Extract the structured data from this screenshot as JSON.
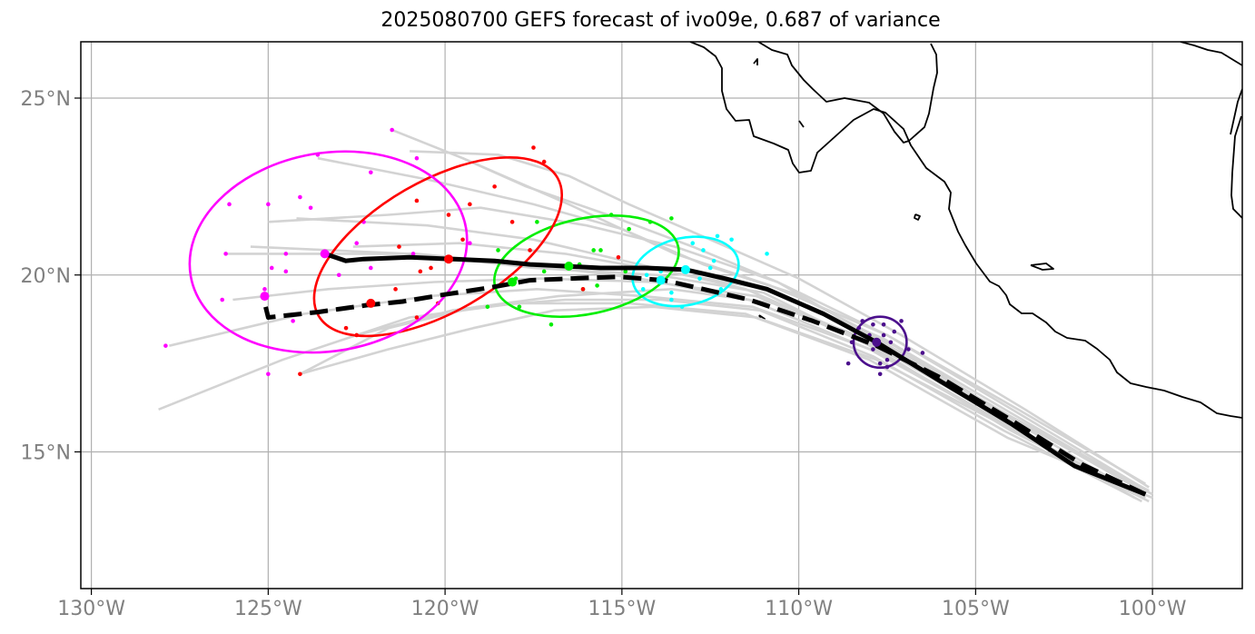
{
  "title": "2025080700 GEFS forecast of ivo09e, 0.687 of variance",
  "axes": {
    "lon_ticks": [
      {
        "lon": -130,
        "label": "130°W"
      },
      {
        "lon": -125,
        "label": "125°W"
      },
      {
        "lon": -120,
        "label": "120°W"
      },
      {
        "lon": -115,
        "label": "115°W"
      },
      {
        "lon": -110,
        "label": "110°W"
      },
      {
        "lon": -105,
        "label": "105°W"
      },
      {
        "lon": -100,
        "label": "100°W"
      }
    ],
    "lat_ticks": [
      {
        "lat": 15,
        "label": "15°N"
      },
      {
        "lat": 20,
        "label": "20°N"
      },
      {
        "lat": 25,
        "label": "25°N"
      }
    ]
  },
  "map_view": {
    "lon_range": [
      -130.3,
      -97.5
    ],
    "lat_range": [
      11.1,
      26.6
    ],
    "grid": true
  },
  "colors": {
    "grid": "#b0b0b0",
    "ensemble_member": "#d3d3d3",
    "coast": "#000000",
    "day_colors": [
      "#4b0f8c",
      "#00ffff",
      "#00ee00",
      "#ff0000",
      "#ff00ff"
    ]
  },
  "chart_data": {
    "type": "map",
    "ensemble_mean_track": {
      "style": "solid",
      "points": [
        [
          -100.2,
          13.8
        ],
        [
          -102.2,
          14.6
        ],
        [
          -104.0,
          15.8
        ],
        [
          -106.0,
          17.0
        ],
        [
          -107.8,
          18.1
        ],
        [
          -109.3,
          18.9
        ],
        [
          -110.9,
          19.6
        ],
        [
          -112.1,
          19.9
        ],
        [
          -113.2,
          20.15
        ],
        [
          -114.3,
          20.2
        ],
        [
          -115.6,
          20.2
        ],
        [
          -116.6,
          20.25
        ],
        [
          -117.6,
          20.3
        ],
        [
          -118.6,
          20.4
        ],
        [
          -119.8,
          20.45
        ],
        [
          -121.0,
          20.5
        ],
        [
          -122.3,
          20.45
        ],
        [
          -122.8,
          20.4
        ],
        [
          -123.4,
          20.6
        ]
      ]
    },
    "control_track": {
      "style": "dashed",
      "points": [
        [
          -100.2,
          13.8
        ],
        [
          -102.0,
          14.65
        ],
        [
          -104.0,
          15.9
        ],
        [
          -106.0,
          17.1
        ],
        [
          -107.8,
          18.0
        ],
        [
          -109.6,
          18.7
        ],
        [
          -111.4,
          19.3
        ],
        [
          -112.7,
          19.6
        ],
        [
          -113.8,
          19.85
        ],
        [
          -115.1,
          19.95
        ],
        [
          -116.4,
          19.9
        ],
        [
          -117.6,
          19.85
        ],
        [
          -118.7,
          19.65
        ],
        [
          -120.0,
          19.45
        ],
        [
          -121.2,
          19.25
        ],
        [
          -122.2,
          19.15
        ],
        [
          -123.6,
          18.95
        ],
        [
          -125.0,
          18.8
        ],
        [
          -125.1,
          19.2
        ]
      ]
    },
    "member_tracks": [
      [
        [
          -100.1,
          13.6
        ],
        [
          -104,
          15.6
        ],
        [
          -107.8,
          17.9
        ],
        [
          -111,
          19.5
        ],
        [
          -114,
          20.0
        ],
        [
          -117.5,
          20.2
        ],
        [
          -121,
          20.6
        ],
        [
          -125.5,
          20.8
        ]
      ],
      [
        [
          -100.3,
          13.9
        ],
        [
          -104,
          16.0
        ],
        [
          -107.8,
          18.2
        ],
        [
          -110.6,
          19.8
        ],
        [
          -113.5,
          20.8
        ],
        [
          -116,
          21.4
        ],
        [
          -119,
          21.9
        ],
        [
          -121.6,
          21.7
        ],
        [
          -125,
          21.5
        ]
      ],
      [
        [
          -100.5,
          13.7
        ],
        [
          -104.2,
          15.9
        ],
        [
          -108,
          18.1
        ],
        [
          -111.5,
          19.6
        ],
        [
          -114.5,
          20.3
        ],
        [
          -117.5,
          21.0
        ],
        [
          -120.5,
          21.4
        ],
        [
          -124.2,
          21.6
        ]
      ],
      [
        [
          -100.2,
          14.1
        ],
        [
          -103.8,
          16.2
        ],
        [
          -107.5,
          18.3
        ],
        [
          -110.8,
          19.7
        ],
        [
          -113.5,
          20.6
        ],
        [
          -116.5,
          22.0
        ],
        [
          -119.5,
          23.3
        ],
        [
          -121.5,
          24.1
        ]
      ],
      [
        [
          -100.4,
          13.8
        ],
        [
          -104,
          15.7
        ],
        [
          -107.7,
          17.8
        ],
        [
          -111.3,
          19.1
        ],
        [
          -114.4,
          19.4
        ],
        [
          -117.4,
          19.6
        ],
        [
          -120.5,
          19.4
        ],
        [
          -124,
          18.9
        ],
        [
          -127.8,
          18.0
        ]
      ],
      [
        [
          -100.0,
          13.7
        ],
        [
          -104.1,
          15.4
        ],
        [
          -108,
          17.6
        ],
        [
          -111.5,
          18.9
        ],
        [
          -114.8,
          19.2
        ],
        [
          -118,
          19.2
        ],
        [
          -121,
          18.8
        ],
        [
          -124.6,
          17.6
        ],
        [
          -128.1,
          16.2
        ]
      ],
      [
        [
          -100.6,
          13.9
        ],
        [
          -104.3,
          16.1
        ],
        [
          -107.6,
          18.0
        ],
        [
          -110.7,
          19.2
        ],
        [
          -113.6,
          19.6
        ],
        [
          -116.8,
          19.4
        ],
        [
          -119.8,
          19.0
        ],
        [
          -122.5,
          18.3
        ]
      ],
      [
        [
          -100.1,
          14.0
        ],
        [
          -103.6,
          16.2
        ],
        [
          -107.1,
          18.3
        ],
        [
          -110,
          19.9
        ],
        [
          -112.5,
          21.0
        ],
        [
          -114.8,
          22.0
        ],
        [
          -116.5,
          22.8
        ],
        [
          -118.5,
          23.4
        ],
        [
          -121,
          23.5
        ]
      ],
      [
        [
          -100.3,
          13.6
        ],
        [
          -104.2,
          15.6
        ],
        [
          -107.9,
          17.7
        ],
        [
          -111.1,
          19.0
        ],
        [
          -113.9,
          19.3
        ],
        [
          -116.6,
          19.3
        ],
        [
          -119.1,
          19.1
        ],
        [
          -121.6,
          18.5
        ],
        [
          -124.1,
          17.2
        ]
      ],
      [
        [
          -100.0,
          13.8
        ],
        [
          -103.9,
          15.9
        ],
        [
          -107.3,
          18.0
        ],
        [
          -110.2,
          19.5
        ],
        [
          -112.7,
          20.3
        ],
        [
          -115,
          21.3
        ],
        [
          -117.5,
          22.0
        ],
        [
          -120.5,
          22.7
        ],
        [
          -123.6,
          23.3
        ]
      ],
      [
        [
          -100.4,
          14.0
        ],
        [
          -104,
          16.1
        ],
        [
          -107.6,
          18.2
        ],
        [
          -110.9,
          19.6
        ],
        [
          -113.8,
          20.1
        ],
        [
          -116.6,
          20.6
        ],
        [
          -119.6,
          20.9
        ],
        [
          -122.6,
          20.8
        ]
      ],
      [
        [
          -100.2,
          13.7
        ],
        [
          -104.1,
          15.7
        ],
        [
          -107.8,
          17.6
        ],
        [
          -111.2,
          18.8
        ],
        [
          -114.1,
          19.1
        ],
        [
          -116.9,
          19.0
        ],
        [
          -119.2,
          18.5
        ],
        [
          -121.6,
          17.9
        ],
        [
          -124.1,
          17.2
        ]
      ],
      [
        [
          -100.5,
          13.8
        ],
        [
          -104.2,
          15.8
        ],
        [
          -108,
          17.9
        ],
        [
          -111.4,
          19.3
        ],
        [
          -114.5,
          19.9
        ],
        [
          -117.7,
          20.3
        ],
        [
          -120.8,
          20.6
        ],
        [
          -123.8,
          20.6
        ],
        [
          -126.2,
          20.6
        ]
      ],
      [
        [
          -100.3,
          14.0
        ],
        [
          -103.8,
          16.1
        ],
        [
          -107.5,
          18.3
        ],
        [
          -110.6,
          19.8
        ],
        [
          -113,
          20.8
        ],
        [
          -115.4,
          21.7
        ],
        [
          -117.7,
          22.5
        ],
        [
          -119.5,
          23.3
        ]
      ],
      [
        [
          -100.1,
          13.9
        ],
        [
          -104,
          16.0
        ],
        [
          -107.9,
          18.0
        ],
        [
          -111.2,
          19.4
        ],
        [
          -114.1,
          19.8
        ],
        [
          -117.3,
          19.9
        ],
        [
          -120.3,
          19.8
        ],
        [
          -123.3,
          19.6
        ],
        [
          -126,
          19.3
        ]
      ]
    ],
    "ellipses": [
      {
        "name": "day1",
        "center": [
          -107.7,
          18.1
        ],
        "semi_axes_deg": [
          0.75,
          0.72
        ],
        "tilt_deg": 0
      },
      {
        "name": "day2",
        "center": [
          -113.2,
          20.1
        ],
        "semi_axes_deg": [
          1.52,
          0.95
        ],
        "tilt_deg": -12
      },
      {
        "name": "day3",
        "center": [
          -116.0,
          20.25
        ],
        "semi_axes_deg": [
          2.65,
          1.35
        ],
        "tilt_deg": -12
      },
      {
        "name": "day4",
        "center": [
          -120.2,
          20.8
        ],
        "semi_axes_deg": [
          3.9,
          1.85
        ],
        "tilt_deg": -30
      },
      {
        "name": "day5",
        "center": [
          -123.3,
          20.65
        ],
        "semi_axes_deg": [
          3.95,
          2.8
        ],
        "tilt_deg": -10
      }
    ],
    "mean_points": [
      {
        "day": 1,
        "lon": -107.8,
        "lat": 18.1
      },
      {
        "day": 2,
        "lon": -113.2,
        "lat": 20.15
      },
      {
        "day": 3,
        "lon": -116.5,
        "lat": 20.25
      },
      {
        "day": 4,
        "lon": -119.9,
        "lat": 20.45
      },
      {
        "day": 5,
        "lon": -123.4,
        "lat": 20.6
      }
    ],
    "control_points": [
      {
        "day": 2,
        "lon": -113.9,
        "lat": 19.85
      },
      {
        "day": 3,
        "lon": -118.1,
        "lat": 19.8
      },
      {
        "day": 4,
        "lon": -122.1,
        "lat": 19.2
      },
      {
        "day": 5,
        "lon": -125.1,
        "lat": 19.4
      }
    ],
    "member_points": {
      "day1": [
        [
          -108.3,
          18.5
        ],
        [
          -108.0,
          18.3
        ],
        [
          -107.6,
          18.6
        ],
        [
          -107.3,
          18.4
        ],
        [
          -107.9,
          17.9
        ],
        [
          -107.5,
          17.6
        ],
        [
          -107.5,
          17.4
        ],
        [
          -107.7,
          17.5
        ],
        [
          -108.6,
          17.5
        ],
        [
          -107.1,
          18.7
        ],
        [
          -106.9,
          17.9
        ],
        [
          -107.7,
          17.2
        ],
        [
          -108.2,
          18.7
        ],
        [
          -107.6,
          18.3
        ],
        [
          -107.8,
          18.0
        ],
        [
          -108.5,
          18.1
        ],
        [
          -106.5,
          17.8
        ],
        [
          -107.4,
          18.1
        ],
        [
          -108.8,
          18.4
        ],
        [
          -107.9,
          18.6
        ]
      ],
      "day2": [
        [
          -114.3,
          20.0
        ],
        [
          -113.6,
          19.5
        ],
        [
          -112.4,
          20.4
        ],
        [
          -111.9,
          21.0
        ],
        [
          -112.2,
          19.6
        ],
        [
          -113.3,
          19.1
        ],
        [
          -112.5,
          20.2
        ],
        [
          -114.4,
          19.6
        ],
        [
          -112.7,
          20.7
        ],
        [
          -113.0,
          20.9
        ],
        [
          -112.8,
          19.9
        ],
        [
          -113.9,
          20.1
        ],
        [
          -110.9,
          20.6
        ],
        [
          -112.3,
          21.1
        ],
        [
          -113.6,
          19.3
        ]
      ],
      "day3": [
        [
          -115.3,
          21.7
        ],
        [
          -114.2,
          21.5
        ],
        [
          -113.6,
          21.6
        ],
        [
          -114.8,
          21.3
        ],
        [
          -115.6,
          20.7
        ],
        [
          -116.2,
          20.3
        ],
        [
          -117.2,
          20.1
        ],
        [
          -117.4,
          21.5
        ],
        [
          -116.1,
          19.6
        ],
        [
          -117.0,
          18.6
        ],
        [
          -118.0,
          19.9
        ],
        [
          -117.9,
          19.1
        ],
        [
          -118.8,
          19.1
        ],
        [
          -119.0,
          19.6
        ],
        [
          -115.8,
          20.7
        ],
        [
          -114.9,
          20.1
        ],
        [
          -115.7,
          19.7
        ],
        [
          -118.5,
          20.7
        ]
      ],
      "day4": [
        [
          -117.5,
          23.6
        ],
        [
          -117.2,
          23.2
        ],
        [
          -118.6,
          22.5
        ],
        [
          -119.3,
          22.0
        ],
        [
          -120.8,
          22.1
        ],
        [
          -119.9,
          21.7
        ],
        [
          -118.1,
          21.5
        ],
        [
          -117.6,
          20.7
        ],
        [
          -119.5,
          21.0
        ],
        [
          -120.4,
          20.2
        ],
        [
          -121.3,
          20.8
        ],
        [
          -120.7,
          20.1
        ],
        [
          -120.2,
          19.2
        ],
        [
          -121.4,
          19.6
        ],
        [
          -120.8,
          18.8
        ],
        [
          -122.8,
          18.5
        ],
        [
          -122.5,
          18.3
        ],
        [
          -124.1,
          17.2
        ],
        [
          -115.1,
          20.5
        ],
        [
          -116.1,
          19.6
        ]
      ],
      "day5": [
        [
          -121.5,
          24.1
        ],
        [
          -123.6,
          23.4
        ],
        [
          -120.8,
          23.3
        ],
        [
          -122.1,
          22.9
        ],
        [
          -124.1,
          22.2
        ],
        [
          -125.0,
          22.0
        ],
        [
          -123.8,
          21.9
        ],
        [
          -126.1,
          22.0
        ],
        [
          -122.3,
          21.5
        ],
        [
          -126.2,
          20.6
        ],
        [
          -124.5,
          20.6
        ],
        [
          -122.5,
          20.9
        ],
        [
          -120.9,
          20.6
        ],
        [
          -119.3,
          20.9
        ],
        [
          -124.5,
          20.1
        ],
        [
          -122.1,
          20.2
        ],
        [
          -123.0,
          20.0
        ],
        [
          -126.3,
          19.3
        ],
        [
          -125.1,
          19.6
        ],
        [
          -124.3,
          18.7
        ],
        [
          -127.9,
          18.0
        ],
        [
          -125.0,
          17.2
        ],
        [
          -124.9,
          20.2
        ]
      ]
    }
  }
}
